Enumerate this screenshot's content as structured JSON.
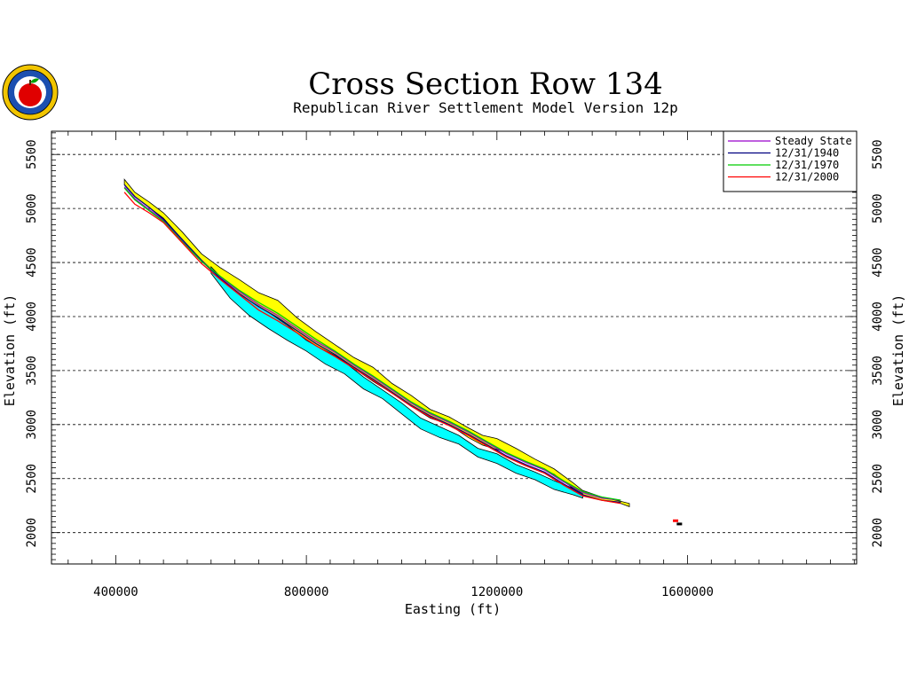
{
  "chart_data": {
    "type": "line",
    "title": "Cross Section Row 134",
    "subtitle": "Republican River Settlement Model Version 12p",
    "xlabel": "Easting (ft)",
    "ylabel": "Elevation (ft)",
    "xlim": [
      265000,
      1955000
    ],
    "ylim": [
      1710000,
      5715000
    ],
    "xlim_note": "",
    "x_ticks": [
      400000,
      800000,
      1200000,
      1600000
    ],
    "y_ticks": [
      2000,
      2500,
      3000,
      3500,
      4000,
      4500,
      5000,
      5500
    ],
    "grid_y_lines": [
      2000,
      2500,
      3000,
      3500,
      4000,
      4500,
      5000,
      5500
    ],
    "legend_position": "top-right",
    "legend": [
      {
        "name": "Steady State",
        "color": "#9900cc"
      },
      {
        "name": "12/31/1940",
        "color": "#000080"
      },
      {
        "name": "12/31/1970",
        "color": "#00cc00"
      },
      {
        "name": "12/31/2000",
        "color": "#ff0000"
      }
    ],
    "layers": [
      {
        "name": "upper",
        "color": "#ffff00",
        "top": [
          [
            418000,
            5270
          ],
          [
            440000,
            5150
          ],
          [
            470000,
            5060
          ],
          [
            500000,
            4960
          ],
          [
            540000,
            4780
          ],
          [
            580000,
            4580
          ],
          [
            620000,
            4450
          ],
          [
            660000,
            4340
          ],
          [
            700000,
            4220
          ],
          [
            740000,
            4150
          ],
          [
            780000,
            3990
          ],
          [
            820000,
            3860
          ],
          [
            860000,
            3740
          ],
          [
            900000,
            3620
          ],
          [
            940000,
            3530
          ],
          [
            980000,
            3380
          ],
          [
            1020000,
            3270
          ],
          [
            1060000,
            3140
          ],
          [
            1100000,
            3070
          ],
          [
            1140000,
            2970
          ],
          [
            1170000,
            2900
          ],
          [
            1200000,
            2870
          ],
          [
            1240000,
            2780
          ],
          [
            1280000,
            2680
          ],
          [
            1320000,
            2590
          ],
          [
            1360000,
            2460
          ],
          [
            1380000,
            2390
          ],
          [
            1420000,
            2330
          ],
          [
            1460000,
            2290
          ],
          [
            1478000,
            2270
          ]
        ],
        "bottom": [
          [
            418000,
            5220
          ],
          [
            440000,
            5110
          ],
          [
            470000,
            5010
          ],
          [
            500000,
            4910
          ],
          [
            540000,
            4710
          ],
          [
            580000,
            4510
          ],
          [
            620000,
            4350
          ],
          [
            660000,
            4180
          ],
          [
            700000,
            4080
          ],
          [
            740000,
            3980
          ],
          [
            780000,
            3850
          ],
          [
            820000,
            3730
          ],
          [
            860000,
            3640
          ],
          [
            900000,
            3520
          ],
          [
            940000,
            3400
          ],
          [
            980000,
            3290
          ],
          [
            1020000,
            3170
          ],
          [
            1060000,
            3060
          ],
          [
            1100000,
            3000
          ],
          [
            1140000,
            2880
          ],
          [
            1170000,
            2810
          ],
          [
            1200000,
            2770
          ],
          [
            1240000,
            2700
          ],
          [
            1280000,
            2620
          ],
          [
            1320000,
            2540
          ],
          [
            1360000,
            2410
          ],
          [
            1380000,
            2350
          ],
          [
            1420000,
            2300
          ],
          [
            1460000,
            2270
          ],
          [
            1478000,
            2240
          ]
        ]
      },
      {
        "name": "lower",
        "color": "#00ffff",
        "top": [
          [
            600000,
            4460
          ],
          [
            640000,
            4270
          ],
          [
            680000,
            4150
          ],
          [
            720000,
            4040
          ],
          [
            760000,
            3920
          ],
          [
            800000,
            3780
          ],
          [
            840000,
            3680
          ],
          [
            880000,
            3580
          ],
          [
            920000,
            3440
          ],
          [
            960000,
            3320
          ],
          [
            1000000,
            3200
          ],
          [
            1040000,
            3060
          ],
          [
            1080000,
            2980
          ],
          [
            1120000,
            2900
          ],
          [
            1160000,
            2780
          ],
          [
            1200000,
            2730
          ],
          [
            1240000,
            2630
          ],
          [
            1280000,
            2560
          ],
          [
            1320000,
            2480
          ],
          [
            1360000,
            2410
          ],
          [
            1380000,
            2360
          ]
        ],
        "bottom": [
          [
            600000,
            4400
          ],
          [
            640000,
            4170
          ],
          [
            680000,
            4010
          ],
          [
            720000,
            3890
          ],
          [
            760000,
            3780
          ],
          [
            800000,
            3680
          ],
          [
            840000,
            3560
          ],
          [
            880000,
            3470
          ],
          [
            920000,
            3330
          ],
          [
            960000,
            3240
          ],
          [
            1000000,
            3100
          ],
          [
            1040000,
            2960
          ],
          [
            1080000,
            2880
          ],
          [
            1120000,
            2820
          ],
          [
            1160000,
            2700
          ],
          [
            1200000,
            2640
          ],
          [
            1240000,
            2550
          ],
          [
            1280000,
            2490
          ],
          [
            1320000,
            2400
          ],
          [
            1360000,
            2350
          ],
          [
            1380000,
            2320
          ]
        ]
      }
    ],
    "series": [
      {
        "name": "Steady State",
        "color": "#9900cc",
        "x": [
          418000,
          440000,
          470000,
          500000,
          540000,
          580000,
          620000,
          660000,
          700000,
          740000,
          780000,
          820000,
          860000,
          900000,
          940000,
          980000,
          1020000,
          1060000,
          1100000,
          1140000,
          1180000,
          1220000,
          1260000,
          1300000,
          1340000,
          1380000,
          1420000,
          1460000
        ],
        "y": [
          5200,
          5090,
          4990,
          4890,
          4700,
          4520,
          4360,
          4230,
          4110,
          4010,
          3890,
          3770,
          3670,
          3550,
          3440,
          3320,
          3200,
          3100,
          3020,
          2930,
          2830,
          2730,
          2650,
          2580,
          2470,
          2370,
          2320,
          2300
        ]
      },
      {
        "name": "12/31/1940",
        "color": "#000080",
        "x": [
          418000,
          440000,
          470000,
          500000,
          540000,
          580000,
          620000,
          660000,
          700000,
          740000,
          780000,
          820000,
          860000,
          900000,
          940000,
          980000,
          1020000,
          1060000,
          1100000,
          1140000,
          1180000,
          1220000,
          1260000,
          1300000,
          1340000,
          1380000,
          1420000,
          1460000
        ],
        "y": [
          5220,
          5110,
          5010,
          4900,
          4710,
          4520,
          4350,
          4210,
          4090,
          3990,
          3870,
          3750,
          3650,
          3530,
          3420,
          3300,
          3180,
          3080,
          3000,
          2910,
          2810,
          2710,
          2630,
          2560,
          2450,
          2350,
          2300,
          2280
        ]
      },
      {
        "name": "12/31/1970",
        "color": "#00cc00",
        "x": [
          418000,
          440000,
          470000,
          500000,
          540000,
          580000,
          620000,
          660000,
          700000,
          740000,
          780000,
          820000,
          860000,
          900000,
          940000,
          980000,
          1020000,
          1060000,
          1100000,
          1140000,
          1180000,
          1220000,
          1260000,
          1300000,
          1340000,
          1380000,
          1420000,
          1460000
        ],
        "y": [
          5190,
          5080,
          4980,
          4880,
          4690,
          4510,
          4370,
          4240,
          4130,
          4030,
          3910,
          3790,
          3680,
          3560,
          3450,
          3330,
          3210,
          3110,
          3030,
          2940,
          2840,
          2740,
          2660,
          2590,
          2480,
          2380,
          2330,
          2300
        ]
      },
      {
        "name": "12/31/2000",
        "color": "#ff0000",
        "x": [
          418000,
          440000,
          470000,
          500000,
          540000,
          580000,
          620000,
          660000,
          700000,
          740000,
          780000,
          820000,
          860000,
          900000,
          940000,
          980000,
          1020000,
          1060000,
          1100000,
          1140000,
          1180000,
          1220000,
          1260000,
          1300000,
          1340000,
          1380000,
          1420000,
          1460000
        ],
        "y": [
          5150,
          5040,
          4960,
          4870,
          4680,
          4490,
          4340,
          4200,
          4060,
          3960,
          3850,
          3730,
          3630,
          3520,
          3410,
          3290,
          3170,
          3070,
          2990,
          2900,
          2800,
          2700,
          2620,
          2550,
          2440,
          2340,
          2300,
          2270
        ]
      }
    ],
    "outliers": [
      {
        "x": 1575000,
        "y": 2110,
        "color": "#ff0000"
      },
      {
        "x": 1583000,
        "y": 2080,
        "color": "#000000"
      }
    ]
  }
}
